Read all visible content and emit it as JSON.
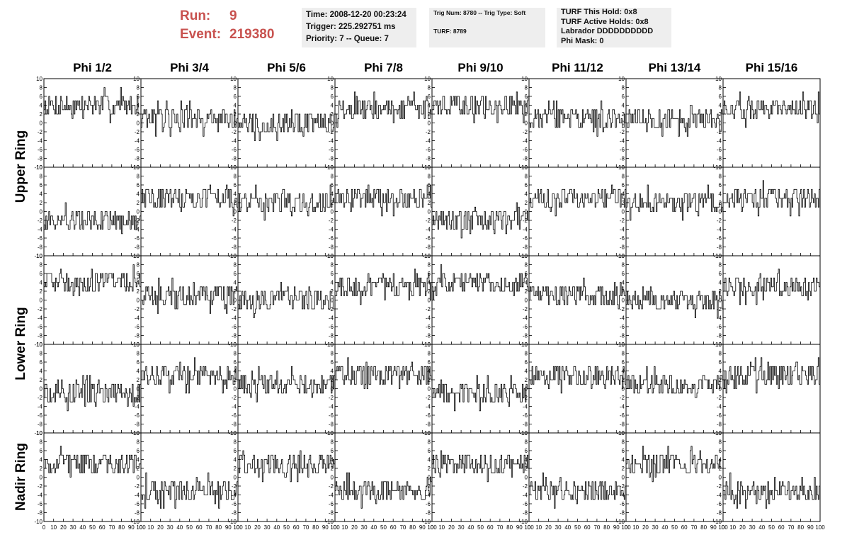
{
  "run_info": {
    "run_label": "Run:",
    "run_value": "9",
    "event_label": "Event:",
    "event_value": "219380"
  },
  "time_box": {
    "time": "Time: 2008-12-20 00:23:24",
    "trigger": "Trigger: 225.292751 ms",
    "priority": "Priority: 7 -- Queue: 7"
  },
  "trig_box": {
    "trig": "Trig Num: 8780 -- Trig Type: Soft",
    "turf": "TURF: 8789"
  },
  "turf_box": {
    "this_hold": "TURF This Hold: 0x8",
    "active_holds": "TURF Active Holds: 0x8",
    "labrador": "Labrador DDDDDDDDDD",
    "phi_mask": "Phi Mask: 0"
  },
  "columns": [
    "Phi 1/2",
    "Phi 3/4",
    "Phi 5/6",
    "Phi 7/8",
    "Phi 9/10",
    "Phi 11/12",
    "Phi 13/14",
    "Phi 15/16"
  ],
  "ring_labels": [
    "Upper Ring",
    "Lower Ring",
    "Nadir Ring"
  ],
  "chart_data": {
    "type": "line",
    "rows": 5,
    "columns": 8,
    "xlim": [
      0,
      100
    ],
    "ylim": [
      -10,
      10
    ],
    "x_ticks": [
      "0",
      "10",
      "20",
      "30",
      "40",
      "50",
      "60",
      "70",
      "80",
      "90",
      "100"
    ],
    "y_ticks": [
      "-10",
      "-8",
      "-6",
      "-4",
      "-2",
      "0",
      "2",
      "4",
      "6",
      "8",
      "10"
    ],
    "samples_per_panel": 100,
    "panel_baselines": [
      [
        4,
        1,
        0,
        3,
        4,
        1,
        1,
        3
      ],
      [
        -2,
        3,
        2,
        3,
        -2,
        3,
        2,
        3
      ],
      [
        4,
        1,
        0,
        3,
        4,
        1,
        0,
        3
      ],
      [
        -1,
        3,
        1,
        3,
        -1,
        3,
        1,
        3
      ],
      [
        3,
        -3,
        3,
        -3,
        3,
        -3,
        3,
        -3
      ]
    ],
    "panel_noise_amplitude": 2.5,
    "grid": false,
    "legend": "none"
  }
}
